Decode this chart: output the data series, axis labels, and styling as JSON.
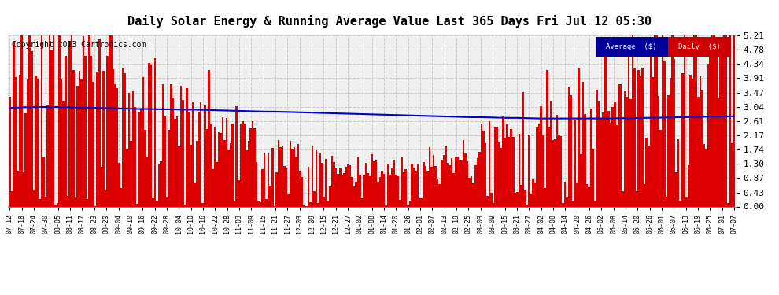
{
  "title": "Daily Solar Energy & Running Average Value Last 365 Days Fri Jul 12 05:30",
  "copyright": "Copyright 2013 Cartronics.com",
  "ylabel_right": [
    "0.00",
    "0.43",
    "0.87",
    "1.30",
    "1.74",
    "2.17",
    "2.61",
    "3.04",
    "3.47",
    "3.91",
    "4.34",
    "4.78",
    "5.21"
  ],
  "ymax": 5.21,
  "ymin": 0.0,
  "bar_color": "#dd0000",
  "avg_color": "#0000cc",
  "background_color": "#ffffff",
  "plot_bg_color": "#f0f0f0",
  "grid_color": "#cccccc",
  "legend_avg_bg": "#000099",
  "legend_daily_bg": "#cc0000",
  "title_fontsize": 11,
  "copyright_fontsize": 7,
  "x_labels": [
    "07-12",
    "07-18",
    "07-24",
    "07-30",
    "08-05",
    "08-11",
    "08-17",
    "08-23",
    "08-29",
    "09-04",
    "09-10",
    "09-16",
    "09-22",
    "09-28",
    "10-04",
    "10-10",
    "10-16",
    "10-22",
    "10-28",
    "11-03",
    "11-09",
    "11-15",
    "11-21",
    "11-27",
    "12-03",
    "12-09",
    "12-15",
    "12-21",
    "12-27",
    "01-02",
    "01-08",
    "01-14",
    "01-20",
    "01-26",
    "02-01",
    "02-07",
    "02-13",
    "02-19",
    "02-25",
    "03-03",
    "03-09",
    "03-15",
    "03-21",
    "03-27",
    "04-02",
    "04-08",
    "04-14",
    "04-20",
    "04-26",
    "05-02",
    "05-08",
    "05-14",
    "05-20",
    "05-26",
    "06-01",
    "06-07",
    "06-13",
    "06-19",
    "06-25",
    "07-01",
    "07-07"
  ],
  "num_bars": 365,
  "avg_curve": [
    3.0,
    3.02,
    3.03,
    3.03,
    3.03,
    3.02,
    3.01,
    3.01,
    3.0,
    2.99,
    2.98,
    2.97,
    2.97,
    2.96,
    2.96,
    2.95,
    2.95,
    2.94,
    2.93,
    2.92,
    2.91,
    2.9,
    2.89,
    2.89,
    2.88,
    2.87,
    2.86,
    2.85,
    2.84,
    2.83,
    2.82,
    2.81,
    2.8,
    2.79,
    2.78,
    2.77,
    2.76,
    2.75,
    2.74,
    2.73,
    2.72,
    2.72,
    2.71,
    2.7,
    2.7,
    2.69,
    2.68,
    2.68,
    2.68,
    2.68,
    2.68,
    2.68,
    2.68,
    2.69,
    2.69,
    2.7,
    2.7,
    2.71,
    2.72,
    2.72,
    2.73,
    2.74,
    2.74,
    2.75
  ]
}
